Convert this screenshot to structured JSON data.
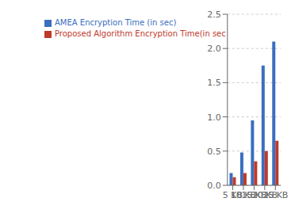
{
  "chart_data": {
    "type": "bar",
    "categories": [
      "5 KB",
      "10 KB",
      "15 KB",
      "20 KB",
      "25 KB"
    ],
    "series": [
      {
        "name": "AMEA Encryption Time (in sec)",
        "color": "#3A6EC0",
        "values": [
          0.18,
          0.48,
          0.95,
          1.75,
          2.1
        ]
      },
      {
        "name": "Proposed Algorithm Encryption Time(in sec",
        "color": "#C0392B",
        "values": [
          0.12,
          0.18,
          0.35,
          0.5,
          0.65
        ]
      }
    ],
    "ylim": [
      0,
      2.5
    ],
    "yticks": [
      {
        "value": 0,
        "label": "0.0"
      },
      0.5,
      {
        "value": 1.0,
        "label": "1.0"
      },
      1.5,
      {
        "value": 2.0,
        "label": "2.0"
      },
      2.5
    ],
    "grid": true,
    "legend": "upper left"
  }
}
